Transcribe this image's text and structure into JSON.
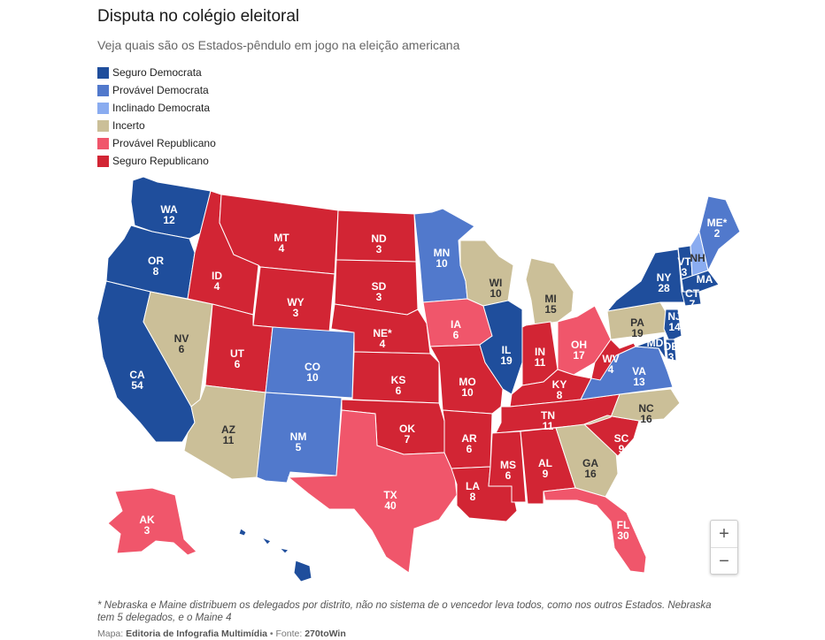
{
  "title": "Disputa no colégio eleitoral",
  "subtitle": "Veja quais são os Estados-pêndulo em jogo na eleição americana",
  "colors": {
    "safe_dem": "#1f4e9c",
    "likely_dem": "#5179cc",
    "lean_dem": "#8aacf0",
    "tossup": "#cbbf98",
    "likely_rep": "#f0566b",
    "safe_rep": "#d22534"
  },
  "legend": [
    {
      "label": "Seguro Democrata",
      "key": "safe_dem"
    },
    {
      "label": "Provável Democrata",
      "key": "likely_dem"
    },
    {
      "label": "Inclinado Democrata",
      "key": "lean_dem"
    },
    {
      "label": "Incerto",
      "key": "tossup"
    },
    {
      "label": "Provável Republicano",
      "key": "likely_rep"
    },
    {
      "label": "Seguro Republicano",
      "key": "safe_rep"
    }
  ],
  "states": [
    {
      "abbr": "WA",
      "votes": "12",
      "rating": "safe_dem"
    },
    {
      "abbr": "OR",
      "votes": "8",
      "rating": "safe_dem"
    },
    {
      "abbr": "CA",
      "votes": "54",
      "rating": "safe_dem"
    },
    {
      "abbr": "NV",
      "votes": "6",
      "rating": "tossup"
    },
    {
      "abbr": "ID",
      "votes": "4",
      "rating": "safe_rep"
    },
    {
      "abbr": "MT",
      "votes": "4",
      "rating": "safe_rep"
    },
    {
      "abbr": "WY",
      "votes": "3",
      "rating": "safe_rep"
    },
    {
      "abbr": "UT",
      "votes": "6",
      "rating": "safe_rep"
    },
    {
      "abbr": "AZ",
      "votes": "11",
      "rating": "tossup"
    },
    {
      "abbr": "CO",
      "votes": "10",
      "rating": "likely_dem"
    },
    {
      "abbr": "NM",
      "votes": "5",
      "rating": "likely_dem"
    },
    {
      "abbr": "ND",
      "votes": "3",
      "rating": "safe_rep"
    },
    {
      "abbr": "SD",
      "votes": "3",
      "rating": "safe_rep"
    },
    {
      "abbr": "NE*",
      "votes": "4",
      "rating": "safe_rep"
    },
    {
      "abbr": "KS",
      "votes": "6",
      "rating": "safe_rep"
    },
    {
      "abbr": "OK",
      "votes": "7",
      "rating": "safe_rep"
    },
    {
      "abbr": "TX",
      "votes": "40",
      "rating": "likely_rep"
    },
    {
      "abbr": "MN",
      "votes": "10",
      "rating": "likely_dem"
    },
    {
      "abbr": "IA",
      "votes": "6",
      "rating": "likely_rep"
    },
    {
      "abbr": "MO",
      "votes": "10",
      "rating": "safe_rep"
    },
    {
      "abbr": "AR",
      "votes": "6",
      "rating": "safe_rep"
    },
    {
      "abbr": "LA",
      "votes": "8",
      "rating": "safe_rep"
    },
    {
      "abbr": "WI",
      "votes": "10",
      "rating": "tossup"
    },
    {
      "abbr": "IL",
      "votes": "19",
      "rating": "safe_dem"
    },
    {
      "abbr": "MI",
      "votes": "15",
      "rating": "tossup"
    },
    {
      "abbr": "IN",
      "votes": "11",
      "rating": "safe_rep"
    },
    {
      "abbr": "OH",
      "votes": "17",
      "rating": "likely_rep"
    },
    {
      "abbr": "KY",
      "votes": "8",
      "rating": "safe_rep"
    },
    {
      "abbr": "TN",
      "votes": "11",
      "rating": "safe_rep"
    },
    {
      "abbr": "MS",
      "votes": "6",
      "rating": "safe_rep"
    },
    {
      "abbr": "AL",
      "votes": "9",
      "rating": "safe_rep"
    },
    {
      "abbr": "GA",
      "votes": "16",
      "rating": "tossup"
    },
    {
      "abbr": "FL",
      "votes": "30",
      "rating": "likely_rep"
    },
    {
      "abbr": "SC",
      "votes": "9",
      "rating": "safe_rep"
    },
    {
      "abbr": "NC",
      "votes": "16",
      "rating": "tossup"
    },
    {
      "abbr": "VA",
      "votes": "13",
      "rating": "likely_dem"
    },
    {
      "abbr": "WV",
      "votes": "4",
      "rating": "safe_rep"
    },
    {
      "abbr": "PA",
      "votes": "19",
      "rating": "tossup"
    },
    {
      "abbr": "NY",
      "votes": "28",
      "rating": "safe_dem"
    },
    {
      "abbr": "VT",
      "votes": "3",
      "rating": "safe_dem"
    },
    {
      "abbr": "NH",
      "votes": "",
      "rating": "lean_dem"
    },
    {
      "abbr": "ME*",
      "votes": "2",
      "rating": "likely_dem"
    },
    {
      "abbr": "MA",
      "votes": "",
      "rating": "safe_dem"
    },
    {
      "abbr": "CT",
      "votes": "7",
      "rating": "safe_dem"
    },
    {
      "abbr": "NJ",
      "votes": "14",
      "rating": "safe_dem"
    },
    {
      "abbr": "DE",
      "votes": "3",
      "rating": "safe_dem"
    },
    {
      "abbr": "MD",
      "votes": "",
      "rating": "safe_dem"
    },
    {
      "abbr": "AK",
      "votes": "3",
      "rating": "likely_rep"
    },
    {
      "abbr": "HI",
      "votes": "",
      "rating": "safe_dem"
    }
  ],
  "zoom": {
    "in_label": "+",
    "out_label": "−"
  },
  "note": "* Nebraska e Maine distribuem os delegados por distrito, não no sistema de o vencedor leva todos, como nos outros Estados. Nebraska tem 5 delegados, e o Maine 4",
  "credit": {
    "map_prefix": "Mapa:",
    "map_source": "Editoria de Infografia Multimídia",
    "separator": "•",
    "data_prefix": "Fonte:",
    "data_source": "270toWin"
  }
}
